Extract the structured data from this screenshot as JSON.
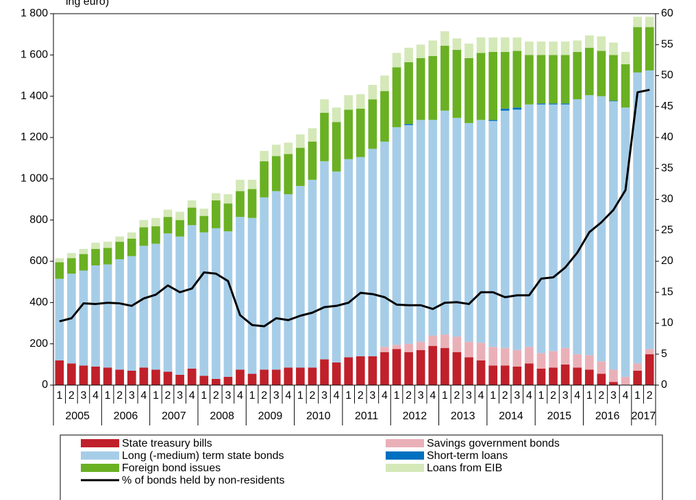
{
  "chart_data": {
    "type": "bar",
    "stacked": true,
    "title": "ing euro)",
    "categories": [
      "1",
      "2",
      "3",
      "4",
      "1",
      "2",
      "3",
      "4",
      "1",
      "2",
      "3",
      "4",
      "1",
      "2",
      "3",
      "4",
      "1",
      "2",
      "3",
      "4",
      "1",
      "2",
      "3",
      "4",
      "1",
      "2",
      "3",
      "4",
      "1",
      "2",
      "3",
      "4",
      "1",
      "2",
      "3",
      "4",
      "1",
      "2",
      "3",
      "4",
      "1",
      "2",
      "3",
      "4",
      "1",
      "2",
      "3",
      "4",
      "1",
      "2"
    ],
    "years": [
      "2005",
      "2006",
      "2007",
      "2008",
      "2009",
      "2010",
      "2011",
      "2012",
      "2013",
      "2014",
      "2015",
      "2016",
      "2017"
    ],
    "ylim": [
      0,
      1800
    ],
    "yticks": [
      0,
      200,
      400,
      600,
      800,
      {
        "value": 1000,
        "label": "1 000"
      },
      {
        "value": 1200,
        "label": "1 200"
      },
      {
        "value": 1400,
        "label": "1 400"
      },
      {
        "value": 1600,
        "label": "1 600"
      },
      {
        "value": 1800,
        "label": "1 800"
      }
    ],
    "y2lim": [
      0,
      60
    ],
    "y2ticks": [
      0,
      5,
      10,
      15,
      20,
      25,
      30,
      35,
      40,
      45,
      50,
      55,
      60
    ],
    "grid": false,
    "legend_position": "bottom",
    "series": [
      {
        "name": "State treasury bills",
        "color": "#c0202a",
        "values": [
          120,
          105,
          95,
          90,
          85,
          75,
          70,
          85,
          75,
          65,
          50,
          80,
          45,
          30,
          40,
          75,
          55,
          75,
          75,
          85,
          85,
          85,
          125,
          110,
          135,
          140,
          140,
          160,
          175,
          160,
          170,
          190,
          180,
          160,
          135,
          120,
          95,
          95,
          90,
          105,
          80,
          85,
          100,
          85,
          75,
          55,
          15,
          0,
          70,
          150
        ]
      },
      {
        "name": "Savings government bonds",
        "color": "#eab0b8",
        "values": [
          0,
          0,
          0,
          0,
          0,
          0,
          0,
          0,
          0,
          0,
          0,
          0,
          0,
          0,
          0,
          0,
          0,
          0,
          0,
          0,
          0,
          0,
          0,
          0,
          0,
          0,
          0,
          25,
          20,
          40,
          40,
          50,
          65,
          75,
          75,
          85,
          90,
          85,
          80,
          80,
          75,
          80,
          80,
          65,
          70,
          60,
          60,
          40,
          35,
          25
        ]
      },
      {
        "name": "Long (-medium) term state bonds",
        "color": "#a6cde8",
        "values": [
          395,
          435,
          460,
          490,
          500,
          535,
          555,
          590,
          610,
          670,
          670,
          695,
          695,
          730,
          705,
          740,
          755,
          835,
          865,
          840,
          880,
          910,
          960,
          925,
          960,
          965,
          1005,
          995,
          1055,
          1060,
          1075,
          1045,
          1085,
          1060,
          1060,
          1080,
          1095,
          1150,
          1165,
          1175,
          1205,
          1195,
          1180,
          1235,
          1260,
          1285,
          1300,
          1305,
          1410,
          1350
        ]
      },
      {
        "name": "Short-term loans",
        "color": "#0070c0",
        "values": [
          0,
          0,
          0,
          0,
          0,
          0,
          0,
          0,
          0,
          0,
          0,
          0,
          0,
          0,
          0,
          0,
          0,
          0,
          0,
          0,
          0,
          0,
          0,
          0,
          0,
          0,
          0,
          0,
          0,
          5,
          0,
          0,
          0,
          0,
          0,
          0,
          5,
          10,
          10,
          0,
          5,
          5,
          5,
          0,
          0,
          0,
          3,
          0,
          0,
          0
        ]
      },
      {
        "name": "Foreign bond issues",
        "color": "#6ab023",
        "values": [
          80,
          75,
          80,
          80,
          80,
          85,
          85,
          90,
          85,
          80,
          80,
          85,
          80,
          135,
          135,
          125,
          140,
          175,
          170,
          195,
          185,
          185,
          235,
          240,
          240,
          235,
          240,
          245,
          290,
          300,
          300,
          310,
          315,
          330,
          315,
          325,
          330,
          275,
          275,
          240,
          235,
          235,
          235,
          230,
          230,
          220,
          222,
          210,
          220,
          210
        ]
      },
      {
        "name": "Loans from EIB",
        "color": "#d4e8b8",
        "values": [
          20,
          25,
          25,
          30,
          30,
          25,
          30,
          35,
          40,
          35,
          40,
          35,
          35,
          35,
          45,
          55,
          45,
          50,
          55,
          55,
          65,
          65,
          65,
          70,
          70,
          70,
          70,
          75,
          70,
          70,
          65,
          75,
          70,
          55,
          70,
          75,
          70,
          70,
          65,
          65,
          65,
          65,
          65,
          55,
          60,
          70,
          60,
          60,
          50,
          50
        ]
      },
      {
        "name": "% of bonds held by non-residents",
        "color": "#000000",
        "type": "line",
        "axis": "y2",
        "values": [
          10.3,
          10.8,
          13.2,
          13.1,
          13.3,
          13.2,
          12.8,
          14.0,
          14.6,
          16.1,
          15.0,
          15.6,
          18.2,
          18.0,
          16.8,
          11.3,
          9.7,
          9.5,
          10.8,
          10.5,
          11.2,
          11.7,
          12.6,
          12.8,
          13.3,
          14.9,
          14.7,
          14.2,
          13.0,
          12.9,
          12.9,
          12.3,
          13.3,
          13.4,
          13.1,
          15.0,
          15.0,
          14.2,
          14.5,
          14.5,
          17.2,
          17.4,
          19.0,
          21.4,
          24.7,
          26.3,
          28.3,
          31.5,
          47.3,
          47.7
        ]
      }
    ]
  }
}
